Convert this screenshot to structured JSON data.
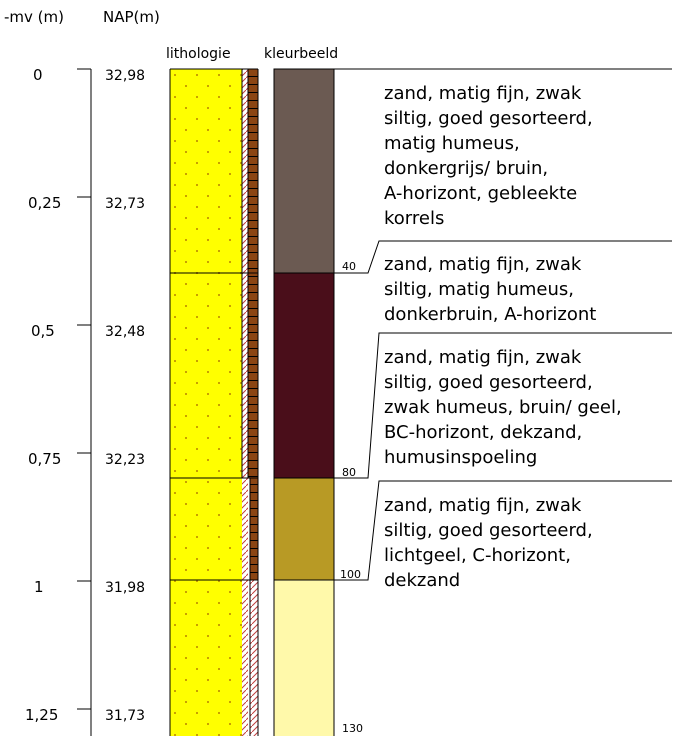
{
  "headers": {
    "depth_col": "-mv (m)",
    "nap_col": "NAP(m)",
    "lithology": "lithologie",
    "color_image": "kleurbeeld"
  },
  "scale": {
    "depth_labels": [
      "0",
      "0,25",
      "0,5",
      "0,75",
      "1",
      "1,25"
    ],
    "nap_labels": [
      "32,98",
      "32,73",
      "32,48",
      "32,23",
      "31,98",
      "31,73"
    ]
  },
  "colors": {
    "sand_yellow": "#ffff00",
    "sand_dots": "#c8a000",
    "humus_brown": "#8b4513",
    "layer_1": "#6b5a52",
    "layer_2": "#4a0e1a",
    "layer_3": "#b89a25",
    "layer_4": "#fff9aa"
  },
  "layer_boundaries_cm": [
    "40",
    "80",
    "100",
    "130"
  ],
  "descriptions": [
    {
      "lines": [
        "zand, matig fijn, zwak",
        "siltig, goed gesorteerd,",
        "matig humeus,",
        "donkergrijs/ bruin,",
        "A-horizont, gebleekte",
        "korrels"
      ]
    },
    {
      "lines": [
        "zand, matig fijn, zwak",
        "siltig, matig humeus,",
        "donkerbruin, A-horizont"
      ]
    },
    {
      "lines": [
        "zand, matig fijn, zwak",
        "siltig, goed gesorteerd,",
        "zwak humeus, bruin/ geel,",
        "BC-horizont, dekzand,",
        "humusinspoeling"
      ]
    },
    {
      "lines": [
        "zand, matig fijn, zwak",
        "siltig, goed gesorteerd,",
        "lichtgeel, C-horizont,",
        "dekzand"
      ]
    }
  ]
}
